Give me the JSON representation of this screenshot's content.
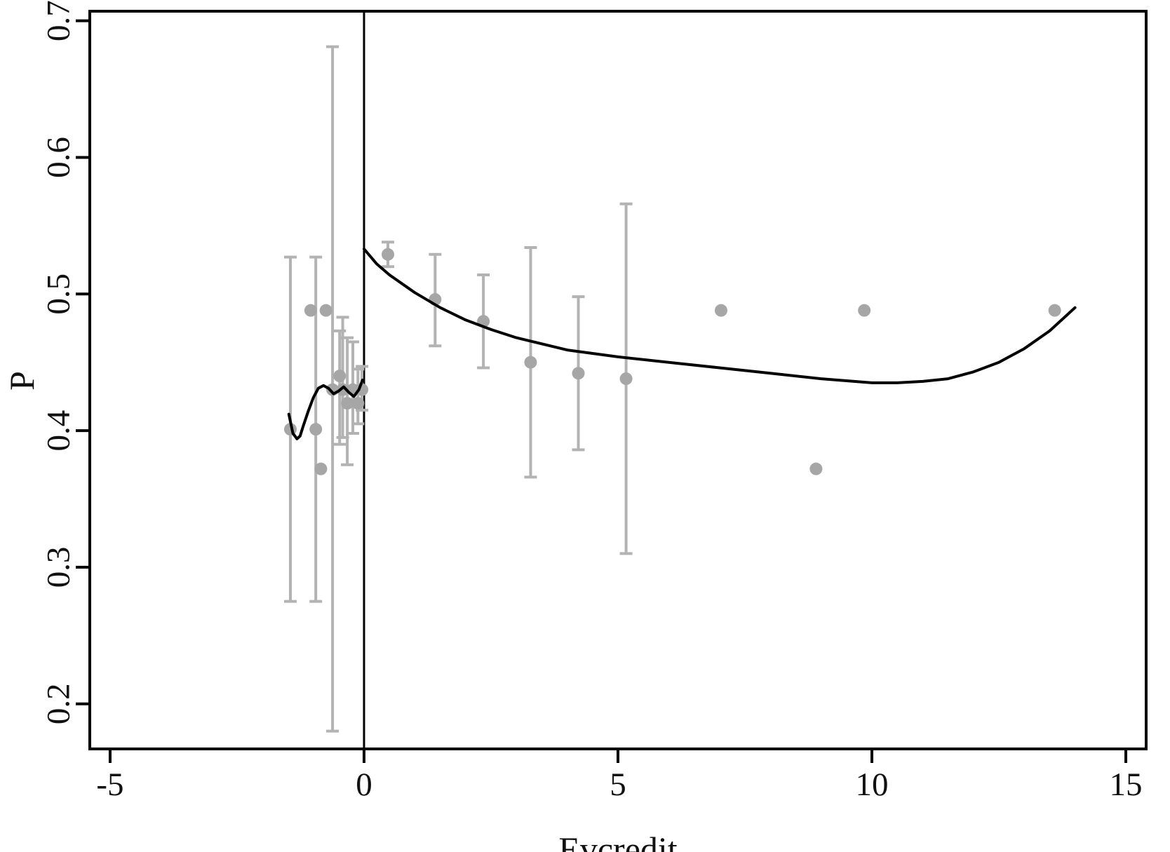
{
  "chart_data": {
    "type": "scatter",
    "title": "",
    "xlabel": "Evcredit",
    "ylabel": "P",
    "xlim": [
      -5.4,
      15.4
    ],
    "ylim": [
      0.167,
      0.707
    ],
    "x_ticks": [
      -5,
      0,
      5,
      10,
      15
    ],
    "x_tick_labels": [
      "-5",
      "0",
      "5",
      "10",
      "15"
    ],
    "y_ticks": [
      0.2,
      0.3,
      0.4,
      0.5,
      0.6,
      0.7
    ],
    "y_tick_labels": [
      "0.2",
      "0.3",
      "0.4",
      "0.5",
      "0.6",
      "0.7"
    ],
    "grid": false,
    "legend": "none",
    "cutoff_x": 0,
    "colors": {
      "points": "#a6a6a6",
      "error_bars": "#b3b3b3",
      "fit_line": "#000000",
      "frame": "#000000"
    },
    "series": [
      {
        "kind": "binned-means-with-95ci",
        "points": [
          {
            "x": -1.45,
            "y": 0.401,
            "lo": 0.275,
            "hi": 0.527
          },
          {
            "x": -1.05,
            "y": 0.488
          },
          {
            "x": -0.95,
            "y": 0.401,
            "lo": 0.275,
            "hi": 0.527
          },
          {
            "x": -0.85,
            "y": 0.372
          },
          {
            "x": -0.75,
            "y": 0.488
          },
          {
            "x": -0.62,
            "y": 0.43,
            "lo": 0.18,
            "hi": 0.681
          },
          {
            "x": -0.48,
            "y": 0.44,
            "lo": 0.39,
            "hi": 0.473
          },
          {
            "x": -0.42,
            "y": 0.43,
            "lo": 0.395,
            "hi": 0.483
          },
          {
            "x": -0.33,
            "y": 0.42,
            "lo": 0.375,
            "hi": 0.468
          },
          {
            "x": -0.22,
            "y": 0.43,
            "lo": 0.398,
            "hi": 0.465
          },
          {
            "x": -0.12,
            "y": 0.42,
            "lo": 0.405,
            "hi": 0.445
          },
          {
            "x": -0.04,
            "y": 0.43,
            "lo": 0.415,
            "hi": 0.447
          },
          {
            "x": 0.47,
            "y": 0.529,
            "lo": 0.52,
            "hi": 0.538
          },
          {
            "x": 1.4,
            "y": 0.496,
            "lo": 0.462,
            "hi": 0.529
          },
          {
            "x": 2.35,
            "y": 0.48,
            "lo": 0.446,
            "hi": 0.514
          },
          {
            "x": 3.28,
            "y": 0.45,
            "lo": 0.366,
            "hi": 0.534
          },
          {
            "x": 4.22,
            "y": 0.442,
            "lo": 0.386,
            "hi": 0.498
          },
          {
            "x": 5.16,
            "y": 0.438,
            "lo": 0.31,
            "hi": 0.566
          },
          {
            "x": 7.03,
            "y": 0.488
          },
          {
            "x": 8.9,
            "y": 0.372
          },
          {
            "x": 9.85,
            "y": 0.488
          },
          {
            "x": 13.6,
            "y": 0.488
          }
        ]
      },
      {
        "kind": "fit-left",
        "x": [
          -1.48,
          -1.4,
          -1.32,
          -1.26,
          -1.2,
          -1.1,
          -1.0,
          -0.9,
          -0.8,
          -0.7,
          -0.6,
          -0.5,
          -0.4,
          -0.3,
          -0.2,
          -0.1,
          -0.03
        ],
        "y": [
          0.412,
          0.398,
          0.394,
          0.396,
          0.403,
          0.414,
          0.424,
          0.431,
          0.433,
          0.431,
          0.427,
          0.429,
          0.432,
          0.428,
          0.425,
          0.43,
          0.437
        ]
      },
      {
        "kind": "fit-right",
        "x": [
          0,
          0.25,
          0.5,
          1.0,
          1.5,
          2.0,
          2.5,
          3.0,
          4.0,
          5.0,
          6.0,
          7.0,
          8.0,
          9.0,
          10.0,
          10.5,
          11.0,
          11.5,
          12.0,
          12.5,
          13.0,
          13.5,
          14.0
        ],
        "y": [
          0.533,
          0.522,
          0.514,
          0.501,
          0.49,
          0.481,
          0.474,
          0.468,
          0.459,
          0.454,
          0.45,
          0.446,
          0.442,
          0.438,
          0.435,
          0.435,
          0.436,
          0.438,
          0.443,
          0.45,
          0.46,
          0.473,
          0.49
        ]
      }
    ]
  }
}
